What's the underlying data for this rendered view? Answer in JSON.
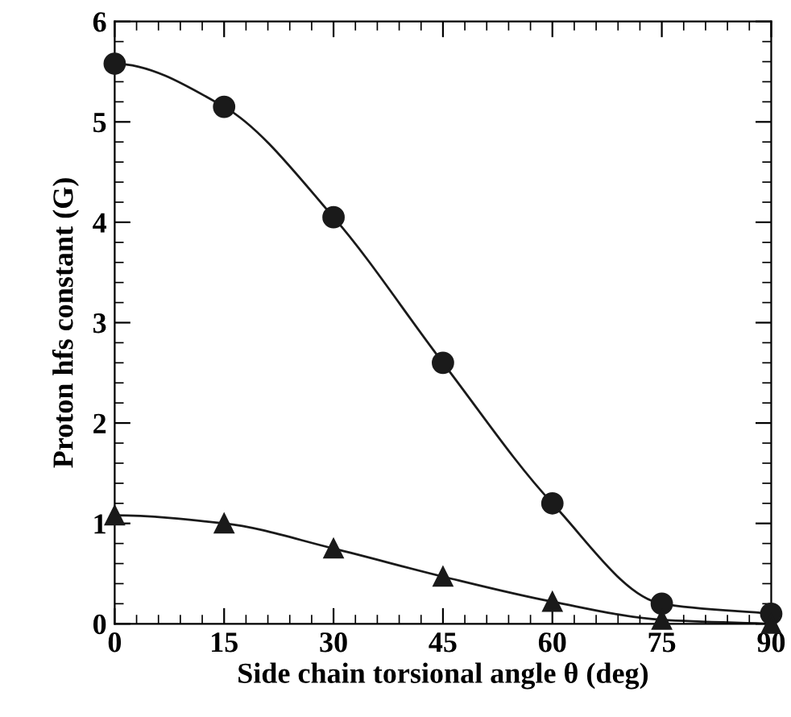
{
  "chart_data": {
    "type": "line",
    "xlabel": "Side chain torsional angle θ (deg)",
    "ylabel": "Proton hfs constant (G)",
    "x": [
      0,
      15,
      30,
      45,
      60,
      75,
      90
    ],
    "series": [
      {
        "color": "#1a1a1a",
        "marker": "circle",
        "values": [
          5.58,
          5.15,
          4.05,
          2.6,
          1.2,
          0.2,
          0.1
        ]
      },
      {
        "color": "#1a1a1a",
        "marker": "triangle",
        "values": [
          1.08,
          1.0,
          0.75,
          0.47,
          0.22,
          0.04,
          0.0
        ]
      }
    ],
    "xlim": [
      0,
      90
    ],
    "ylim": [
      0,
      6
    ],
    "xticks": [
      0,
      15,
      30,
      45,
      60,
      75,
      90
    ],
    "yticks": [
      0,
      1,
      2,
      3,
      4,
      5,
      6
    ],
    "grid": false,
    "line_style": "solid"
  }
}
